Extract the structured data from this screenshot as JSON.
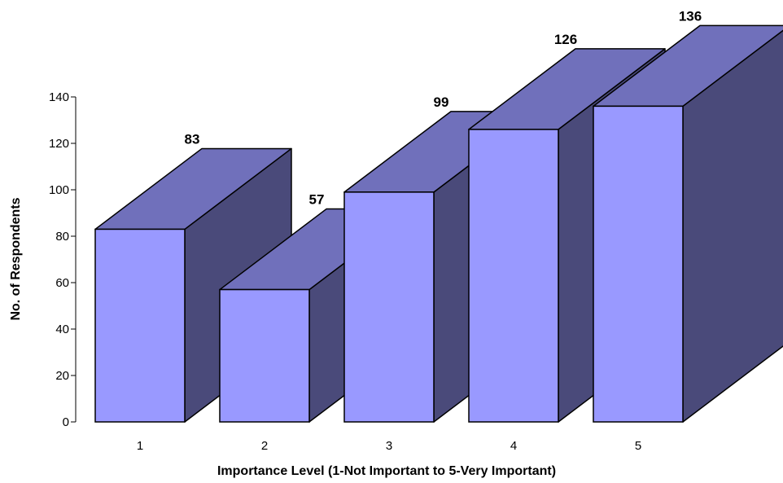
{
  "chart_data": {
    "type": "bar",
    "categories": [
      "1",
      "2",
      "3",
      "4",
      "5"
    ],
    "values": [
      83,
      57,
      99,
      126,
      136
    ],
    "title": "",
    "xlabel": "Importance Level (1-Not Important to 5-Very Important)",
    "ylabel": "No. of Respondents",
    "ylim": [
      0,
      140
    ],
    "yticks": [
      0,
      20,
      40,
      60,
      80,
      100,
      120,
      140
    ],
    "grid": false,
    "legend": "none",
    "style": "3d-bar",
    "colors": {
      "front": "#9999ff",
      "top": "#7070bb",
      "side": "#4a4a7a",
      "edge": "#000000"
    }
  }
}
